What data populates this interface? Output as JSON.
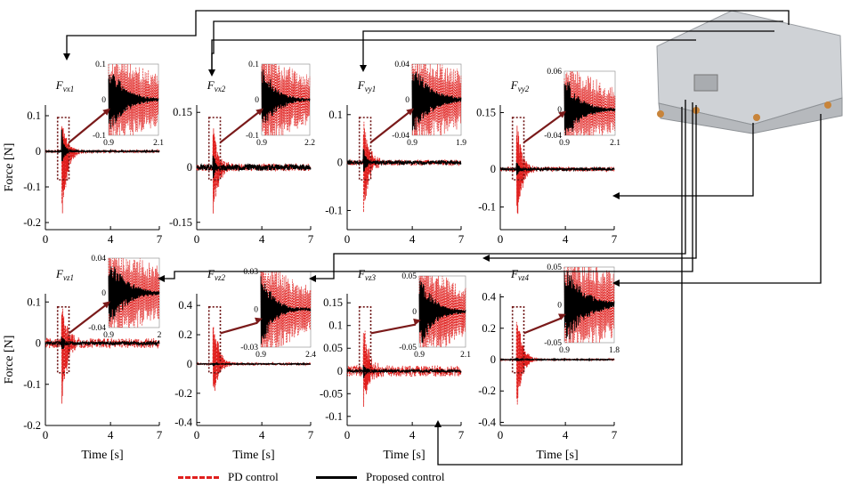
{
  "chart_data": [
    {
      "id": "fvx1",
      "type": "line",
      "title": "F_vx1",
      "ylabel": "Force [N]",
      "xlabel": "",
      "xlim": [
        0,
        7
      ],
      "ylim": [
        -0.22,
        0.13
      ],
      "xticks": [
        "0",
        "4",
        "7"
      ],
      "yticks": [
        "0.1",
        "0",
        "-0.1",
        "-0.2"
      ],
      "series": [
        {
          "name": "PD control",
          "peak": 0.1,
          "trough": -0.22,
          "impact_time": 1.0,
          "noise": 0.004
        },
        {
          "name": "Proposed control",
          "peak": 0.06,
          "trough": -0.05,
          "impact_time": 1.0,
          "noise": 0.002
        }
      ],
      "inset": {
        "xlim": [
          0.9,
          2.1
        ],
        "ylim": [
          -0.1,
          0.1
        ],
        "xticks": [
          "0.9",
          "2.1"
        ],
        "yticks": [
          "0.1",
          "0",
          "-0.1"
        ]
      }
    },
    {
      "id": "fvx2",
      "type": "line",
      "title": "F_vx2",
      "ylabel": "",
      "xlabel": "",
      "xlim": [
        0,
        7
      ],
      "ylim": [
        -0.17,
        0.17
      ],
      "xticks": [
        "0",
        "4",
        "7"
      ],
      "yticks": [
        "0.15",
        "0",
        "-0.15"
      ],
      "series": [
        {
          "name": "PD control",
          "peak": 0.14,
          "trough": -0.16,
          "impact_time": 1.0,
          "noise": 0.01
        },
        {
          "name": "Proposed control",
          "peak": 0.03,
          "trough": -0.03,
          "impact_time": 1.0,
          "noise": 0.008
        }
      ],
      "inset": {
        "xlim": [
          0.9,
          2.2
        ],
        "ylim": [
          -0.1,
          0.1
        ],
        "xticks": [
          "0.9",
          "2.2"
        ],
        "yticks": [
          "0.1",
          "0",
          "-0.1"
        ]
      }
    },
    {
      "id": "fvy1",
      "type": "line",
      "title": "F_vy1",
      "ylabel": "",
      "xlabel": "",
      "xlim": [
        0,
        7
      ],
      "ylim": [
        -0.14,
        0.12
      ],
      "xticks": [
        "0",
        "4",
        "7"
      ],
      "yticks": [
        "0.1",
        "0",
        "-0.1"
      ],
      "series": [
        {
          "name": "PD control",
          "peak": 0.1,
          "trough": -0.13,
          "impact_time": 1.0,
          "noise": 0.006
        },
        {
          "name": "Proposed control",
          "peak": 0.03,
          "trough": -0.03,
          "impact_time": 1.0,
          "noise": 0.004
        }
      ],
      "inset": {
        "xlim": [
          0.9,
          1.9
        ],
        "ylim": [
          -0.04,
          0.04
        ],
        "xticks": [
          "0.9",
          "1.9"
        ],
        "yticks": [
          "0.04",
          "0",
          "-0.04"
        ]
      }
    },
    {
      "id": "fvy2",
      "type": "line",
      "title": "F_vy2",
      "ylabel": "",
      "xlabel": "",
      "xlim": [
        0,
        7
      ],
      "ylim": [
        -0.16,
        0.17
      ],
      "xticks": [
        "0",
        "4",
        "7"
      ],
      "yticks": [
        "0.15",
        "0",
        "-0.1"
      ],
      "series": [
        {
          "name": "PD control",
          "peak": 0.14,
          "trough": -0.15,
          "impact_time": 1.0,
          "noise": 0.006
        },
        {
          "name": "Proposed control",
          "peak": 0.02,
          "trough": -0.02,
          "impact_time": 1.0,
          "noise": 0.003
        }
      ],
      "inset": {
        "xlim": [
          0.9,
          2.1
        ],
        "ylim": [
          -0.04,
          0.06
        ],
        "xticks": [
          "0.9",
          "2.1"
        ],
        "yticks": [
          "0.06",
          "0",
          "-0.04"
        ]
      }
    },
    {
      "id": "fvz1",
      "type": "line",
      "title": "F_vz1",
      "ylabel": "Force [N]",
      "xlabel": "Time [s]",
      "xlim": [
        0,
        7
      ],
      "ylim": [
        -0.2,
        0.12
      ],
      "xticks": [
        "0",
        "4",
        "7"
      ],
      "yticks": [
        "0.1",
        "0",
        "-0.1",
        "-0.2"
      ],
      "series": [
        {
          "name": "PD control",
          "peak": 0.11,
          "trough": -0.16,
          "impact_time": 1.0,
          "noise": 0.012
        },
        {
          "name": "Proposed control",
          "peak": 0.02,
          "trough": -0.02,
          "impact_time": 1.0,
          "noise": 0.004
        }
      ],
      "inset": {
        "xlim": [
          0.9,
          2
        ],
        "ylim": [
          -0.04,
          0.04
        ],
        "xticks": [
          "0.9",
          "2"
        ],
        "yticks": [
          "0.04",
          "0",
          "-0.04"
        ]
      }
    },
    {
      "id": "fvz2",
      "type": "line",
      "title": "F_vz2",
      "ylabel": "",
      "xlabel": "Time [s]",
      "xlim": [
        0,
        7
      ],
      "ylim": [
        -0.42,
        0.48
      ],
      "xticks": [
        "0",
        "4",
        "7"
      ],
      "yticks": [
        "0.4",
        "0.2",
        "0",
        "-0.2",
        "-0.4"
      ],
      "series": [
        {
          "name": "PD control",
          "peak": 0.42,
          "trough": -0.28,
          "impact_time": 1.0,
          "noise": 0.008
        },
        {
          "name": "Proposed control",
          "peak": 0.01,
          "trough": -0.02,
          "impact_time": 1.0,
          "noise": 0.003
        }
      ],
      "inset": {
        "xlim": [
          0.9,
          2.4
        ],
        "ylim": [
          -0.03,
          0.03
        ],
        "xticks": [
          "0.9",
          "2.4"
        ],
        "yticks": [
          "0.03",
          "0",
          "-0.03"
        ]
      }
    },
    {
      "id": "fvz3",
      "type": "line",
      "title": "F_vz3",
      "ylabel": "",
      "xlabel": "Time [s]",
      "xlim": [
        0,
        7
      ],
      "ylim": [
        -0.12,
        0.17
      ],
      "xticks": [
        "0",
        "4",
        "7"
      ],
      "yticks": [
        "0.15",
        "0.1",
        "0.05",
        "0",
        "-0.05",
        "-0.1"
      ],
      "series": [
        {
          "name": "PD control",
          "peak": 0.13,
          "trough": -0.09,
          "impact_time": 1.0,
          "noise": 0.012
        },
        {
          "name": "Proposed control",
          "peak": 0.02,
          "trough": -0.02,
          "impact_time": 1.0,
          "noise": 0.003
        }
      ],
      "inset": {
        "xlim": [
          0.9,
          2.1
        ],
        "ylim": [
          -0.05,
          0.05
        ],
        "xticks": [
          "0.9",
          "2.1"
        ],
        "yticks": [
          "0.05",
          "0",
          "-0.05"
        ]
      }
    },
    {
      "id": "fvz4",
      "type": "line",
      "title": "F_vz4",
      "ylabel": "",
      "xlabel": "Time [s]",
      "xlim": [
        0,
        7
      ],
      "ylim": [
        -0.42,
        0.42
      ],
      "xticks": [
        "0",
        "4",
        "7"
      ],
      "yticks": [
        "0.4",
        "0.2",
        "0",
        "-0.2",
        "-0.4"
      ],
      "series": [
        {
          "name": "PD control",
          "peak": 0.36,
          "trough": -0.38,
          "impact_time": 1.0,
          "noise": 0.006
        },
        {
          "name": "Proposed control",
          "peak": 0.02,
          "trough": -0.02,
          "impact_time": 1.0,
          "noise": 0.003
        }
      ],
      "inset": {
        "xlim": [
          0.9,
          1.8
        ],
        "ylim": [
          -0.05,
          0.05
        ],
        "xticks": [
          "0.9",
          "1.8"
        ],
        "yticks": [
          "0.05",
          "0",
          "-0.05"
        ]
      }
    }
  ],
  "legend": {
    "pd_label": "PD control",
    "proposed_label": "Proposed control"
  },
  "colors": {
    "pd": "#e0201e",
    "proposed": "#000000",
    "arrow": "#7a1a1a",
    "box": "#6e1414"
  }
}
